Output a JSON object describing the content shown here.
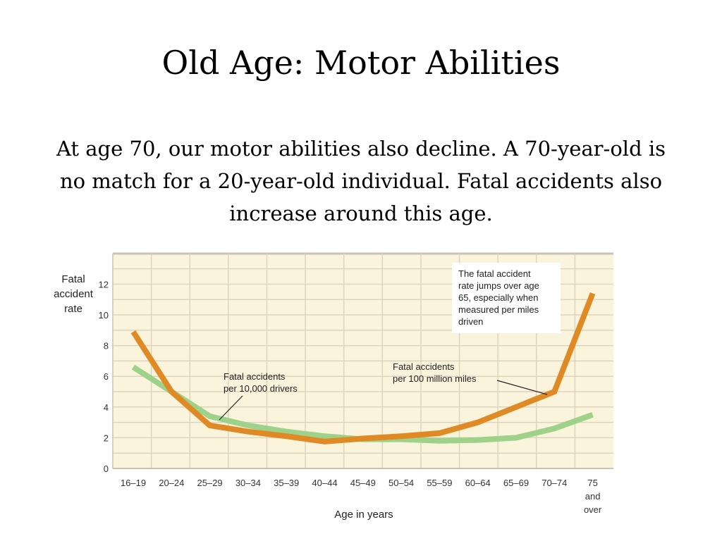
{
  "slide": {
    "title": "Old Age: Motor Abilities",
    "body": "At age 70, our motor abilities also decline. A 70-year-old is no match for a 20-year-old individual. Fatal accidents also increase around this age."
  },
  "chart_data": {
    "type": "line",
    "title": "",
    "xlabel": "Age in years",
    "ylabel": [
      "Fatal",
      "accident",
      "rate"
    ],
    "ylim": [
      0,
      14
    ],
    "yticks": [
      0,
      2,
      4,
      6,
      8,
      10,
      12
    ],
    "grid": true,
    "categories": [
      [
        "16–19"
      ],
      [
        "20–24"
      ],
      [
        "25–29"
      ],
      [
        "30–34"
      ],
      [
        "35–39"
      ],
      [
        "40–44"
      ],
      [
        "45–49"
      ],
      [
        "50–54"
      ],
      [
        "55–59"
      ],
      [
        "60–64"
      ],
      [
        "65–69"
      ],
      [
        "70–74"
      ],
      [
        "75",
        "and",
        "over"
      ]
    ],
    "series": [
      {
        "name": "Fatal accidents per 10,000 drivers",
        "label_lines": [
          "Fatal accidents",
          "per 10,000 drivers"
        ],
        "color": "#9ed28a",
        "values": [
          6.6,
          5.0,
          3.4,
          2.8,
          2.4,
          2.1,
          1.9,
          1.9,
          1.8,
          1.85,
          2.0,
          2.6,
          3.5
        ]
      },
      {
        "name": "Fatal accidents per 100 million miles",
        "label_lines": [
          "Fatal accidents",
          "per 100 million miles"
        ],
        "color": "#e08a25",
        "values": [
          8.9,
          5.0,
          2.8,
          2.4,
          2.1,
          1.75,
          1.95,
          2.1,
          2.3,
          3.0,
          4.0,
          5.0,
          11.4
        ]
      }
    ],
    "annotation": {
      "lines": [
        "The fatal accident",
        "rate jumps over age",
        "65, especially when",
        "measured per miles",
        "driven"
      ]
    },
    "colors": {
      "plot_bg": "#fbf4dc",
      "grid": "#ddd4be",
      "frame": "#c9c2b2"
    }
  }
}
